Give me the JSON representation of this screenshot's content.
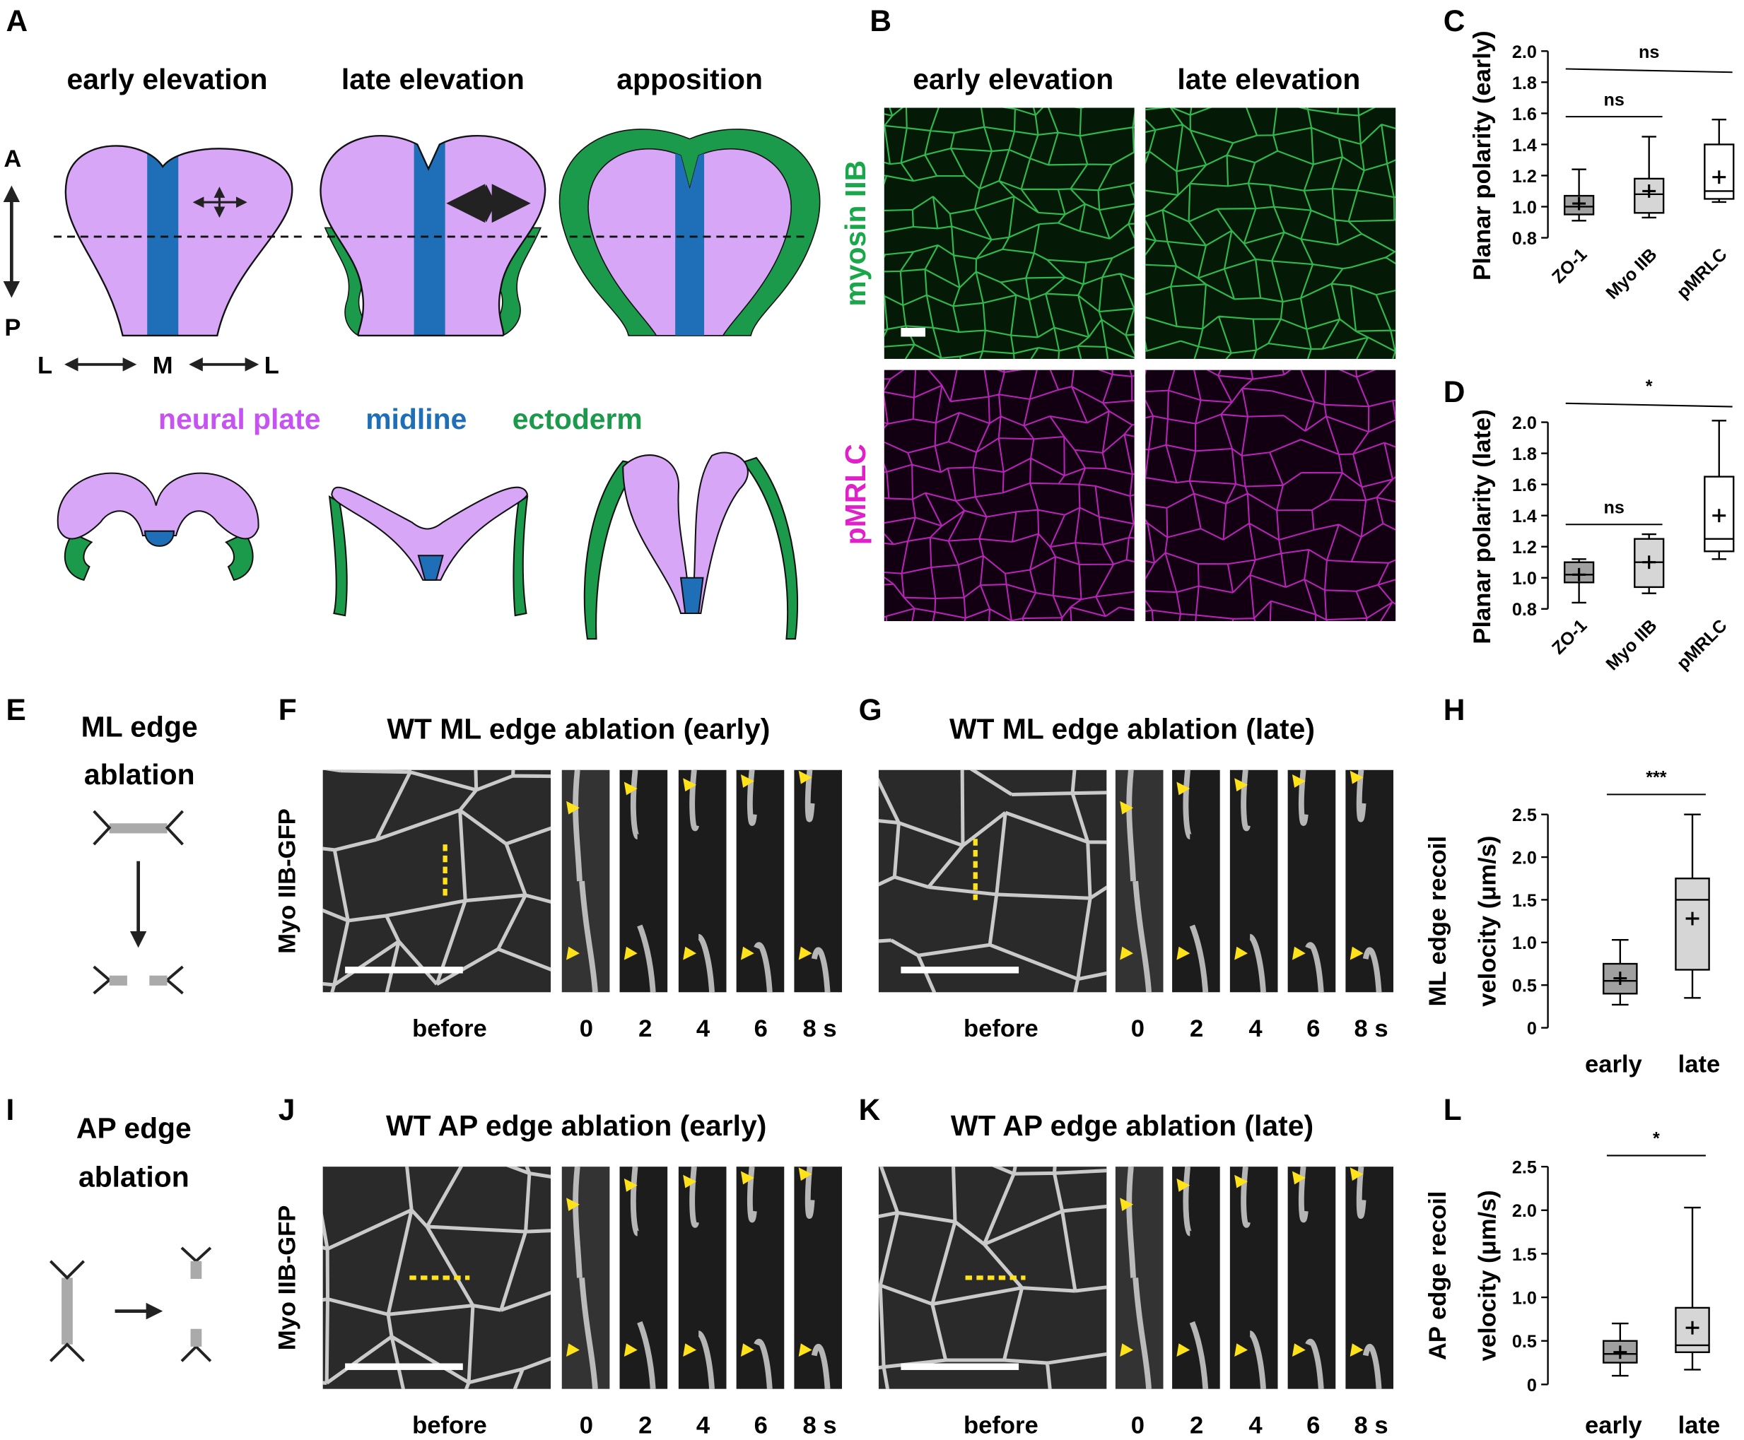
{
  "panel_labels": [
    "A",
    "B",
    "C",
    "D",
    "E",
    "F",
    "G",
    "H",
    "I",
    "J",
    "K",
    "L"
  ],
  "panel_a": {
    "stages": [
      "early elevation",
      "late elevation",
      "apposition"
    ],
    "orientation": [
      "A",
      "P",
      "L",
      "M",
      "L"
    ],
    "legend": [
      "neural plate",
      "midline",
      "ectoderm"
    ]
  },
  "panel_b": {
    "columns": [
      "early elevation",
      "late elevation"
    ],
    "rows": [
      "myosin IIB",
      "pMRLC"
    ]
  },
  "schematics": [
    {
      "title": [
        "ML edge",
        "ablation"
      ]
    },
    {
      "title": [
        "AP edge",
        "ablation"
      ]
    }
  ],
  "ablations": [
    {
      "title": "WT ML edge ablation (early)",
      "ylabel": "Myo IIB-GFP",
      "frames": [
        "before",
        "0",
        "2",
        "4",
        "6",
        "8 s"
      ]
    },
    {
      "title": "WT ML edge ablation (late)",
      "frames": [
        "before",
        "0",
        "2",
        "4",
        "6",
        "8 s"
      ]
    },
    {
      "title": "WT AP edge ablation (early)",
      "ylabel": "Myo IIB-GFP",
      "frames": [
        "before",
        "0",
        "2",
        "4",
        "6",
        "8 s"
      ]
    },
    {
      "title": "WT AP edge ablation (late)",
      "frames": [
        "before",
        "0",
        "2",
        "4",
        "6",
        "8 s"
      ]
    }
  ],
  "chart_data": [
    {
      "type": "box",
      "ylabel": "Planar polarity (early)",
      "categories": [
        "ZO-1",
        "Myo IIB",
        "pMRLC"
      ],
      "ylim": [
        0.8,
        2.0
      ],
      "yticks": [
        0.8,
        {
          "value": 1,
          "label": "1.0"
        },
        1.2,
        1.4,
        1.6,
        1.8,
        {
          "value": 2,
          "label": "2.0"
        }
      ],
      "boxes": [
        {
          "whisker_low": 0.91,
          "q1": 0.95,
          "median": 1.0,
          "q3": 1.07,
          "whisker_high": 1.24,
          "mean": 1.02,
          "color": "#a0a0a0"
        },
        {
          "whisker_low": 0.93,
          "q1": 0.96,
          "median": 1.08,
          "q3": 1.18,
          "whisker_high": 1.45,
          "mean": 1.1,
          "color": "#d6d6d6"
        },
        {
          "whisker_low": 1.03,
          "q1": 1.05,
          "median": 1.1,
          "q3": 1.4,
          "whisker_high": 1.56,
          "mean": 1.19,
          "color": "#ffffff"
        }
      ],
      "annotations": [
        "ns",
        "ns"
      ]
    },
    {
      "type": "box",
      "ylabel": "Planar polarity (late)",
      "categories": [
        "ZO-1",
        "Myo IIB",
        "pMRLC"
      ],
      "ylim": [
        0.8,
        2.0
      ],
      "yticks": [
        0.8,
        {
          "value": 1,
          "label": "1.0"
        },
        1.2,
        1.4,
        1.6,
        1.8,
        {
          "value": 2,
          "label": "2.0"
        }
      ],
      "boxes": [
        {
          "whisker_low": 0.84,
          "q1": 0.97,
          "median": 1.02,
          "q3": 1.1,
          "whisker_high": 1.12,
          "mean": 1.02,
          "color": "#a0a0a0"
        },
        {
          "whisker_low": 0.9,
          "q1": 0.94,
          "median": 1.1,
          "q3": 1.25,
          "whisker_high": 1.28,
          "mean": 1.1,
          "color": "#d6d6d6"
        },
        {
          "whisker_low": 1.12,
          "q1": 1.17,
          "median": 1.25,
          "q3": 1.65,
          "whisker_high": 2.01,
          "mean": 1.4,
          "color": "#ffffff"
        }
      ],
      "annotations": [
        "ns",
        "*"
      ]
    },
    {
      "type": "box",
      "ylabel": [
        "ML edge recoil",
        "velocity (μm/s)"
      ],
      "categories": [
        "early",
        "late"
      ],
      "ylim": [
        0,
        2.5
      ],
      "yticks": [
        0,
        0.5,
        {
          "value": 1,
          "label": "1.0"
        },
        1.5,
        {
          "value": 2,
          "label": "2.0"
        },
        2.5
      ],
      "boxes": [
        {
          "whisker_low": 0.27,
          "q1": 0.4,
          "median": 0.55,
          "q3": 0.75,
          "whisker_high": 1.03,
          "mean": 0.58,
          "color": "#a0a0a0"
        },
        {
          "whisker_low": 0.35,
          "q1": 0.68,
          "median": 1.5,
          "q3": 1.75,
          "whisker_high": 2.5,
          "mean": 1.28,
          "color": "#d6d6d6"
        }
      ],
      "annotations": [
        "***"
      ]
    },
    {
      "type": "box",
      "ylabel": [
        "AP edge recoil",
        "velocity (μm/s)"
      ],
      "categories": [
        "early",
        "late"
      ],
      "ylim": [
        0,
        2.5
      ],
      "yticks": [
        0,
        0.5,
        {
          "value": 1,
          "label": "1.0"
        },
        1.5,
        {
          "value": 2,
          "label": "2.0"
        },
        2.5
      ],
      "boxes": [
        {
          "whisker_low": 0.1,
          "q1": 0.25,
          "median": 0.35,
          "q3": 0.5,
          "whisker_high": 0.7,
          "mean": 0.37,
          "color": "#a0a0a0"
        },
        {
          "whisker_low": 0.17,
          "q1": 0.37,
          "median": 0.45,
          "q3": 0.88,
          "whisker_high": 2.03,
          "mean": 0.65,
          "color": "#d6d6d6"
        }
      ],
      "annotations": [
        "*"
      ]
    }
  ]
}
